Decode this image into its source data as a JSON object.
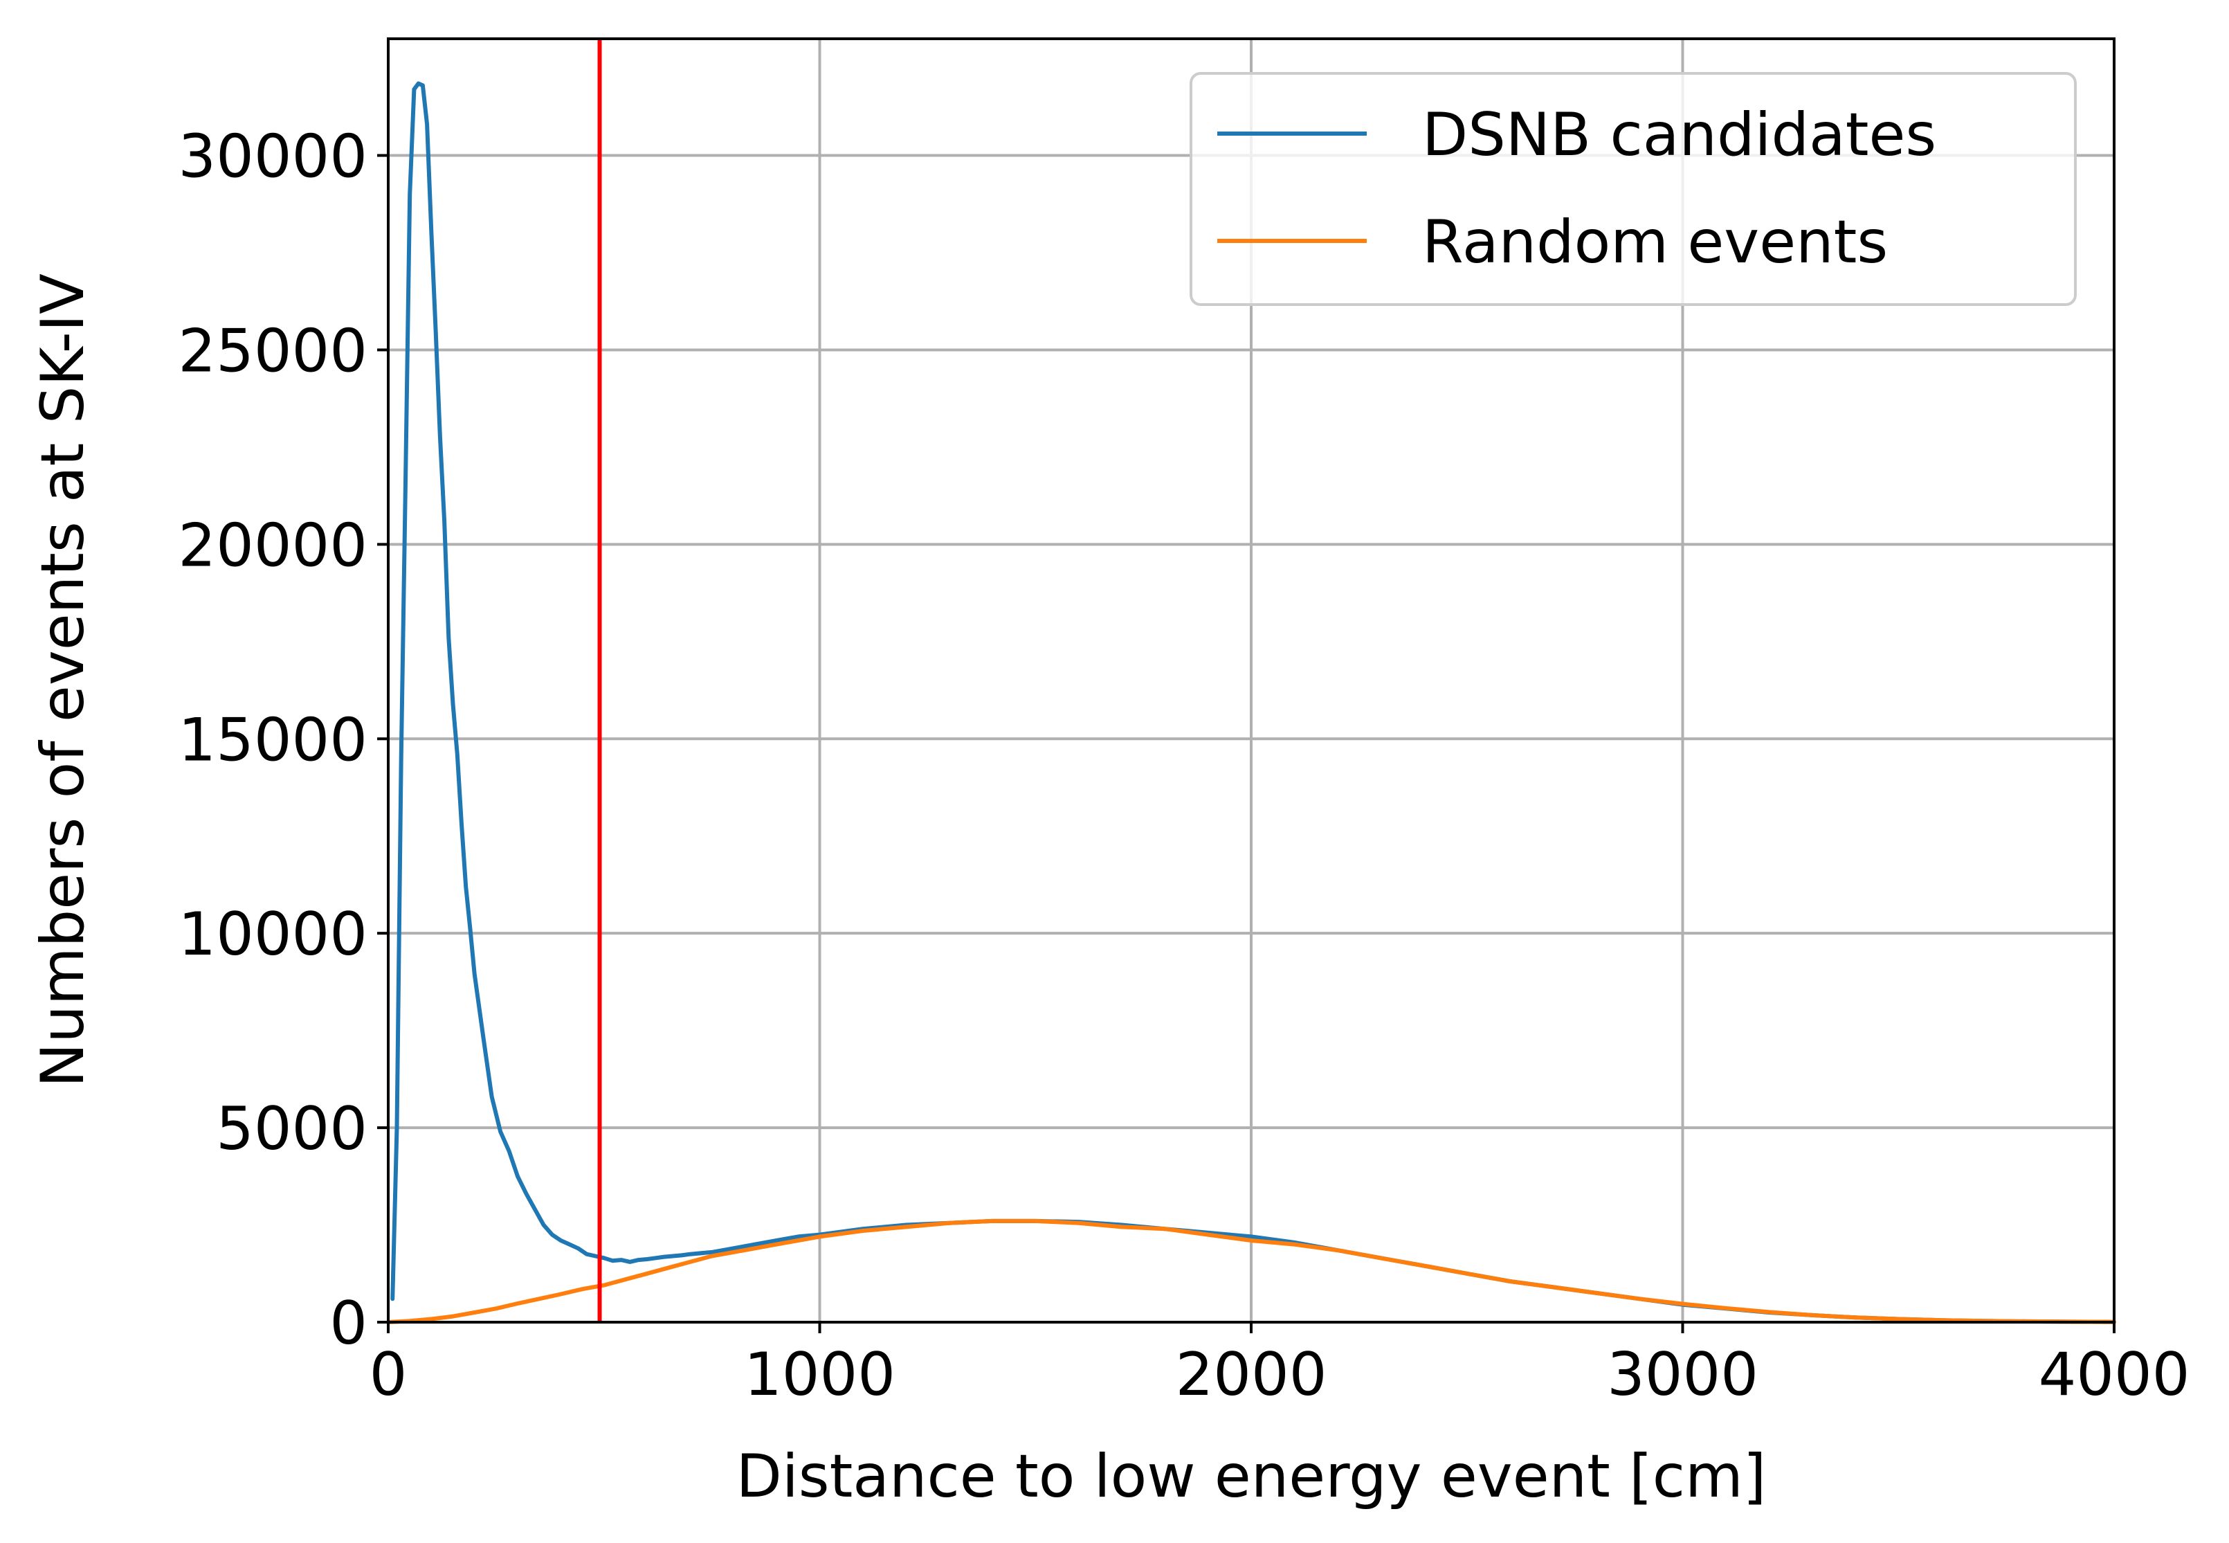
{
  "chart_data": {
    "type": "line",
    "xlabel": "Distance to low energy event [cm]",
    "ylabel": "Numbers of events at SK-IV",
    "xlim": [
      0,
      4000
    ],
    "ylim": [
      0,
      33000
    ],
    "xticks": [
      0,
      1000,
      2000,
      3000,
      4000
    ],
    "xtick_labels": [
      "0",
      "1000",
      "2000",
      "3000",
      "4000"
    ],
    "yticks": [
      0,
      5000,
      10000,
      15000,
      20000,
      25000,
      30000
    ],
    "ytick_labels": [
      "0",
      "5000",
      "10000",
      "15000",
      "20000",
      "25000",
      "30000"
    ],
    "grid": true,
    "legend_position": "top-right",
    "vertical_line": {
      "x": 490,
      "color": "#ff0000"
    },
    "series": [
      {
        "name": "DSNB candidates",
        "color": "#1f77b4",
        "x": [
          10,
          20,
          30,
          40,
          50,
          60,
          70,
          80,
          90,
          100,
          110,
          120,
          130,
          140,
          150,
          160,
          170,
          180,
          190,
          200,
          220,
          240,
          260,
          280,
          300,
          320,
          340,
          360,
          380,
          400,
          420,
          440,
          460,
          480,
          500,
          520,
          540,
          560,
          580,
          600,
          620,
          640,
          660,
          680,
          700,
          750,
          800,
          850,
          900,
          950,
          1000,
          1100,
          1200,
          1300,
          1400,
          1500,
          1600,
          1700,
          1800,
          1900,
          2000,
          2100,
          2200,
          2300,
          2400,
          2500,
          2600,
          2700,
          2800,
          2900,
          3000,
          3100,
          3200,
          3300,
          3400,
          3500,
          3600,
          3700,
          3800,
          3900,
          4000
        ],
        "y": [
          600,
          5000,
          14500,
          21500,
          29000,
          31700,
          31850,
          31800,
          30800,
          28000,
          25500,
          22800,
          20600,
          17600,
          15900,
          14600,
          12800,
          11200,
          10100,
          8950,
          7350,
          5800,
          4900,
          4400,
          3750,
          3300,
          2900,
          2500,
          2250,
          2100,
          2000,
          1900,
          1750,
          1700,
          1650,
          1580,
          1600,
          1550,
          1600,
          1620,
          1650,
          1680,
          1700,
          1720,
          1750,
          1800,
          1900,
          2000,
          2100,
          2200,
          2250,
          2400,
          2500,
          2550,
          2600,
          2600,
          2580,
          2500,
          2400,
          2300,
          2200,
          2050,
          1850,
          1650,
          1450,
          1250,
          1050,
          900,
          750,
          600,
          450,
          350,
          250,
          180,
          120,
          80,
          50,
          30,
          20,
          10,
          5
        ]
      },
      {
        "name": "Random events",
        "color": "#ff7f0e",
        "x": [
          0,
          50,
          100,
          150,
          200,
          250,
          300,
          350,
          400,
          450,
          500,
          550,
          600,
          650,
          700,
          750,
          800,
          850,
          900,
          950,
          1000,
          1100,
          1200,
          1300,
          1400,
          1500,
          1600,
          1700,
          1800,
          1900,
          2000,
          2100,
          2200,
          2300,
          2400,
          2500,
          2600,
          2700,
          2800,
          2900,
          3000,
          3100,
          3200,
          3300,
          3400,
          3500,
          3600,
          3700,
          3800,
          3900,
          4000
        ],
        "y": [
          0,
          30,
          80,
          150,
          250,
          350,
          480,
          600,
          720,
          850,
          950,
          1100,
          1250,
          1400,
          1550,
          1700,
          1800,
          1900,
          2000,
          2100,
          2200,
          2350,
          2450,
          2550,
          2600,
          2600,
          2550,
          2450,
          2400,
          2250,
          2100,
          2000,
          1850,
          1650,
          1450,
          1250,
          1050,
          900,
          750,
          600,
          470,
          360,
          260,
          180,
          120,
          80,
          50,
          30,
          20,
          10,
          5
        ]
      }
    ]
  }
}
